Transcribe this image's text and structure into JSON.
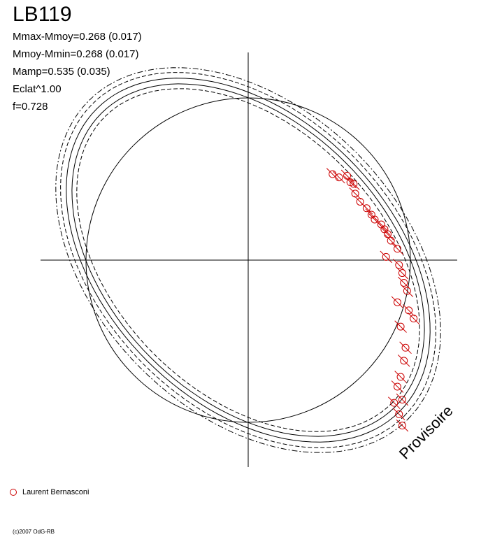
{
  "title": "LB119",
  "stats": [
    "Mmax-Mmoy=0.268 (0.017)",
    "Mmoy-Mmin=0.268 (0.017)",
    "Mamp=0.535 (0.035)",
    "Eclat^1.00",
    "f=0.728"
  ],
  "legend": {
    "label": "Laurent Bernasconi",
    "color": "#cc0000"
  },
  "stamp": "Provisoire",
  "copyright": "(c)2007 OdG-RB",
  "chart_data": {
    "type": "scatter",
    "projection": "polar-phase",
    "reference_circle_radius": 1.0,
    "amplitude": 0.535,
    "obs_color": "#cc0000",
    "observations": [
      {
        "x": 0.52,
        "y": 0.53
      },
      {
        "x": 0.56,
        "y": 0.51
      },
      {
        "x": 0.61,
        "y": 0.52
      },
      {
        "x": 0.63,
        "y": 0.48
      },
      {
        "x": 0.65,
        "y": 0.47
      },
      {
        "x": 0.66,
        "y": 0.41
      },
      {
        "x": 0.69,
        "y": 0.36
      },
      {
        "x": 0.73,
        "y": 0.32
      },
      {
        "x": 0.76,
        "y": 0.28
      },
      {
        "x": 0.78,
        "y": 0.25
      },
      {
        "x": 0.82,
        "y": 0.22
      },
      {
        "x": 0.84,
        "y": 0.19
      },
      {
        "x": 0.86,
        "y": 0.16
      },
      {
        "x": 0.88,
        "y": 0.12
      },
      {
        "x": 0.92,
        "y": 0.07
      },
      {
        "x": 0.85,
        "y": 0.02
      },
      {
        "x": 0.93,
        "y": -0.03
      },
      {
        "x": 0.95,
        "y": -0.08
      },
      {
        "x": 0.96,
        "y": -0.14
      },
      {
        "x": 0.98,
        "y": -0.19
      },
      {
        "x": 0.92,
        "y": -0.26
      },
      {
        "x": 0.99,
        "y": -0.31
      },
      {
        "x": 1.02,
        "y": -0.36
      },
      {
        "x": 0.94,
        "y": -0.41
      },
      {
        "x": 0.97,
        "y": -0.54
      },
      {
        "x": 0.96,
        "y": -0.62
      },
      {
        "x": 0.94,
        "y": -0.72
      },
      {
        "x": 0.92,
        "y": -0.78
      },
      {
        "x": 0.95,
        "y": -0.86
      },
      {
        "x": 0.9,
        "y": -0.88
      },
      {
        "x": 0.93,
        "y": -0.95
      },
      {
        "x": 0.95,
        "y": -1.02
      }
    ]
  }
}
